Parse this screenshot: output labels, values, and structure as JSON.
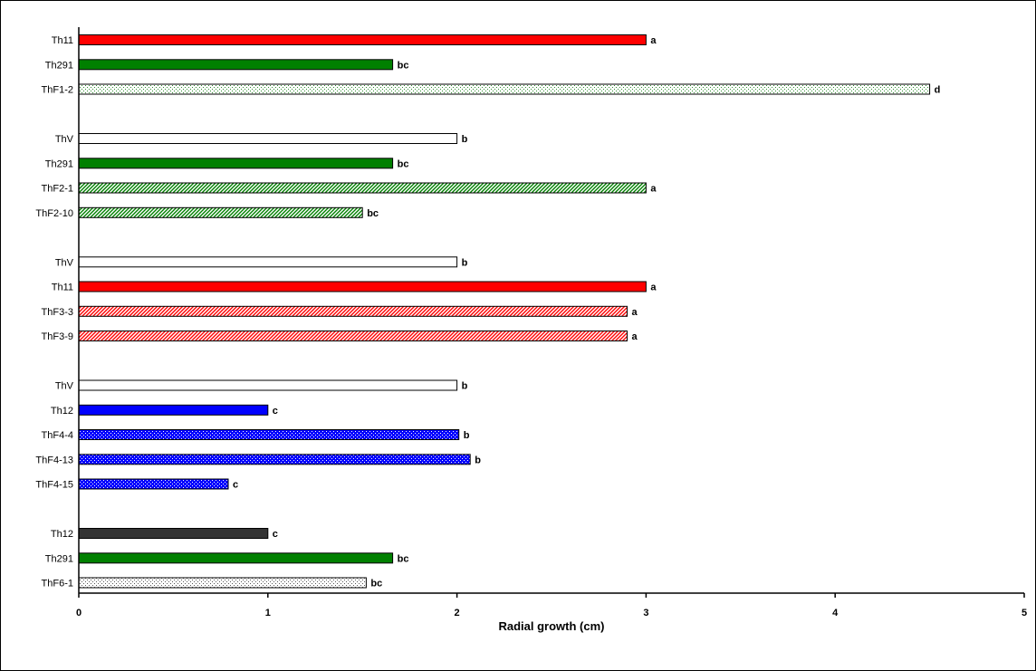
{
  "chart_data": {
    "type": "bar",
    "orientation": "horizontal",
    "xlabel": "Radial growth (cm)",
    "xlim": [
      0,
      5
    ],
    "xticks": [
      0,
      1,
      2,
      3,
      4,
      5
    ],
    "grid": false,
    "groups": [
      {
        "bars": [
          {
            "label": "Th11",
            "value": 3.0,
            "letter": "a",
            "color": "#ff0000",
            "pattern": "solid"
          },
          {
            "label": "Th291",
            "value": 1.66,
            "letter": "bc",
            "color": "#008000",
            "pattern": "solid"
          },
          {
            "label": "ThF1-2",
            "value": 4.5,
            "letter": "d",
            "color": "#2e8b2e",
            "pattern": "dots-light"
          }
        ]
      },
      {
        "bars": [
          {
            "label": "ThV",
            "value": 2.0,
            "letter": "b",
            "color": "#ffffff",
            "pattern": "solid"
          },
          {
            "label": "Th291",
            "value": 1.66,
            "letter": "bc",
            "color": "#008000",
            "pattern": "solid"
          },
          {
            "label": "ThF2-1",
            "value": 3.0,
            "letter": "a",
            "color": "#008000",
            "pattern": "diag-green"
          },
          {
            "label": "ThF2-10",
            "value": 1.5,
            "letter": "bc",
            "color": "#008000",
            "pattern": "diag-green"
          }
        ]
      },
      {
        "bars": [
          {
            "label": "ThV",
            "value": 2.0,
            "letter": "b",
            "color": "#ffffff",
            "pattern": "solid"
          },
          {
            "label": "Th11",
            "value": 3.0,
            "letter": "a",
            "color": "#ff0000",
            "pattern": "solid"
          },
          {
            "label": "ThF3-3",
            "value": 2.9,
            "letter": "a",
            "color": "#ff0000",
            "pattern": "diag-red"
          },
          {
            "label": "ThF3-9",
            "value": 2.9,
            "letter": "a",
            "color": "#ff0000",
            "pattern": "diag-red"
          }
        ]
      },
      {
        "bars": [
          {
            "label": "ThV",
            "value": 2.0,
            "letter": "b",
            "color": "#ffffff",
            "pattern": "solid"
          },
          {
            "label": "Th12",
            "value": 1.0,
            "letter": "c",
            "color": "#0000ff",
            "pattern": "solid"
          },
          {
            "label": "ThF4-4",
            "value": 2.01,
            "letter": "b",
            "color": "#0000ff",
            "pattern": "dots-blue"
          },
          {
            "label": "ThF4-13",
            "value": 2.07,
            "letter": "b",
            "color": "#0000ff",
            "pattern": "dots-blue"
          },
          {
            "label": "ThF4-15",
            "value": 0.79,
            "letter": "c",
            "color": "#0000ff",
            "pattern": "dots-blue"
          }
        ]
      },
      {
        "bars": [
          {
            "label": "Th12",
            "value": 1.0,
            "letter": "c",
            "color": "#333333",
            "pattern": "solid"
          },
          {
            "label": "Th291",
            "value": 1.66,
            "letter": "bc",
            "color": "#008000",
            "pattern": "solid"
          },
          {
            "label": "ThF6-1",
            "value": 1.52,
            "letter": "bc",
            "color": "#808080",
            "pattern": "dots-gray"
          }
        ]
      }
    ]
  }
}
